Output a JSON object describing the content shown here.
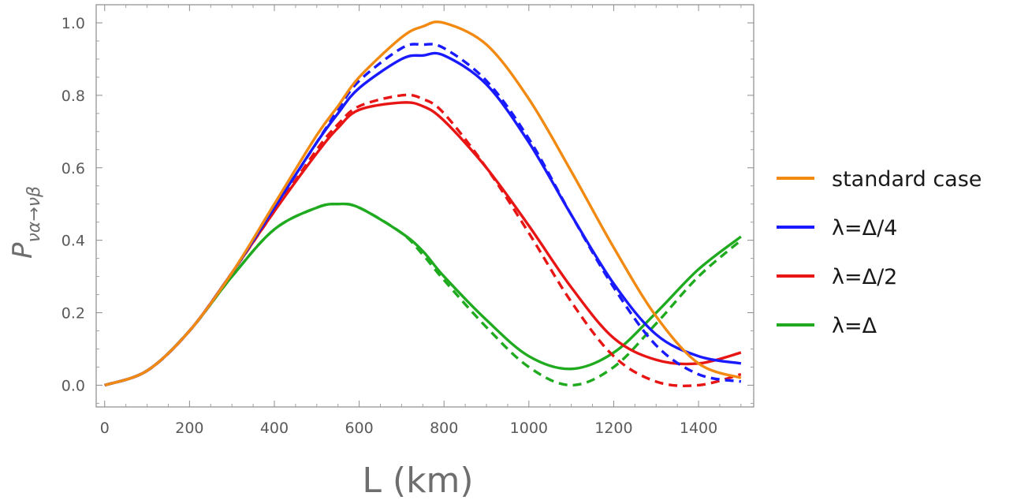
{
  "chart_data": {
    "type": "line",
    "xlabel": "L (km)",
    "ylabel": "P",
    "ylabel_subscript": "να→νβ",
    "xlim": [
      -20,
      1530
    ],
    "ylim": [
      -0.06,
      1.05
    ],
    "x_ticks": [
      "0",
      "200",
      "400",
      "600",
      "800",
      "1000",
      "1200",
      "1400"
    ],
    "y_ticks": [
      "0.0",
      "0.2",
      "0.4",
      "0.6",
      "0.8",
      "1.0"
    ],
    "frame": "full box with minor ticks",
    "grid": false,
    "legend_position": "right, outside plot",
    "x": [
      0,
      100,
      200,
      300,
      400,
      500,
      550,
      600,
      700,
      750,
      800,
      900,
      1000,
      1100,
      1200,
      1300,
      1400,
      1500
    ],
    "series": [
      {
        "name": "standard case",
        "color": "#f28a12",
        "style": "solid",
        "values": [
          0.0,
          0.04,
          0.15,
          0.31,
          0.5,
          0.69,
          0.77,
          0.85,
          0.96,
          0.99,
          1.0,
          0.94,
          0.79,
          0.59,
          0.38,
          0.19,
          0.06,
          0.02
        ]
      },
      {
        "name": "λ=Δ/4",
        "color": "#1a1aff",
        "style": "solid",
        "values": [
          0.0,
          0.04,
          0.15,
          0.31,
          0.49,
          0.67,
          0.75,
          0.82,
          0.9,
          0.91,
          0.91,
          0.83,
          0.67,
          0.47,
          0.28,
          0.14,
          0.08,
          0.06
        ]
      },
      {
        "name": "λ=Δ/4 (dashed)",
        "color": "#1a1aff",
        "style": "dashed",
        "values": [
          0.0,
          0.04,
          0.15,
          0.31,
          0.49,
          0.67,
          0.76,
          0.84,
          0.93,
          0.94,
          0.93,
          0.84,
          0.68,
          0.47,
          0.27,
          0.11,
          0.03,
          0.01
        ]
      },
      {
        "name": "λ=Δ/2",
        "color": "#e81515",
        "style": "solid",
        "values": [
          0.0,
          0.04,
          0.15,
          0.31,
          0.48,
          0.64,
          0.71,
          0.76,
          0.78,
          0.77,
          0.73,
          0.6,
          0.44,
          0.27,
          0.13,
          0.07,
          0.06,
          0.09
        ]
      },
      {
        "name": "λ=Δ/2 (dashed)",
        "color": "#e81515",
        "style": "dashed",
        "values": [
          0.0,
          0.04,
          0.15,
          0.31,
          0.48,
          0.65,
          0.72,
          0.77,
          0.8,
          0.79,
          0.75,
          0.6,
          0.42,
          0.23,
          0.08,
          0.01,
          0.0,
          0.03
        ]
      },
      {
        "name": "λ=Δ",
        "color": "#1faa1f",
        "style": "solid",
        "values": [
          0.0,
          0.04,
          0.15,
          0.3,
          0.43,
          0.49,
          0.5,
          0.49,
          0.42,
          0.37,
          0.3,
          0.18,
          0.08,
          0.045,
          0.09,
          0.2,
          0.32,
          0.41
        ]
      },
      {
        "name": "λ=Δ (dashed)",
        "color": "#1faa1f",
        "style": "dashed",
        "values": [
          0.0,
          0.04,
          0.15,
          0.3,
          0.43,
          0.49,
          0.5,
          0.49,
          0.42,
          0.36,
          0.29,
          0.16,
          0.05,
          0.0,
          0.05,
          0.17,
          0.3,
          0.4
        ]
      }
    ],
    "legend": [
      {
        "label": "standard case",
        "color": "#f28a12"
      },
      {
        "label": "λ=Δ/4",
        "color": "#1a1aff"
      },
      {
        "label": "λ=Δ/2",
        "color": "#e81515"
      },
      {
        "label": "λ=Δ",
        "color": "#1faa1f"
      }
    ]
  }
}
